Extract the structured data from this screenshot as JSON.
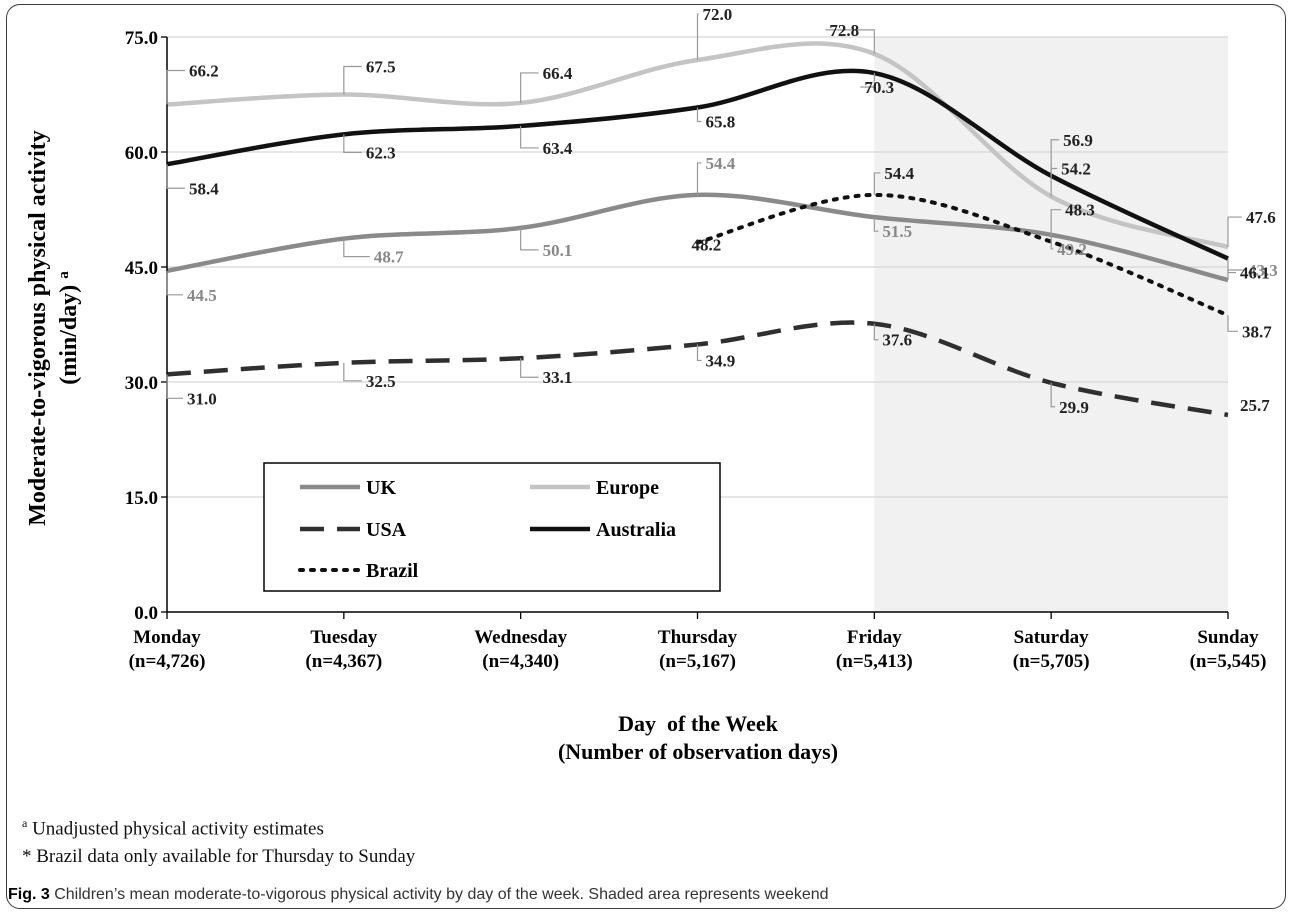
{
  "chart_data": {
    "type": "line",
    "ylabel_line1": "Moderate-to-vigorous physical activity",
    "ylabel_line2": "(min/day)",
    "ylabel_superscript": "a",
    "xlabel_line1": "Day  of the Week",
    "xlabel_line2": "(Number of observation days)",
    "ylim": [
      0,
      75
    ],
    "yticks": [
      "0.0",
      "15.0",
      "30.0",
      "45.0",
      "60.0",
      "75.0"
    ],
    "categories": [
      "Monday",
      "Tuesday",
      "Wednesday",
      "Thursday",
      "Friday",
      "Saturday",
      "Sunday"
    ],
    "category_counts": [
      "(n=4,726)",
      "(n=4,367)",
      "(n=4,340)",
      "(n=5,167)",
      "(n=5,413)",
      "(n=5,705)",
      "(n=5,545)"
    ],
    "shaded_region": "Friday to Sunday (weekend)",
    "grid": "horizontal",
    "legend_position": "lower-left",
    "series": [
      {
        "name": "UK",
        "color": "#8a8a8a",
        "style": "solid",
        "values": [
          44.5,
          48.7,
          50.1,
          54.4,
          51.5,
          49.2,
          43.3
        ],
        "labels": [
          "44.5",
          "48.7",
          "50.1",
          "54.4",
          "51.5",
          "49.2",
          "43.3"
        ]
      },
      {
        "name": "Europe",
        "color": "#c4c4c4",
        "style": "solid",
        "values": [
          66.2,
          67.5,
          66.4,
          72.0,
          72.8,
          54.2,
          47.6
        ],
        "labels": [
          "66.2",
          "67.5",
          "66.4",
          "72.0",
          "72.8",
          "54.2",
          "47.6"
        ]
      },
      {
        "name": "USA",
        "color": "#2f2f2f",
        "style": "dashed",
        "values": [
          31.0,
          32.5,
          33.1,
          34.9,
          37.6,
          29.9,
          25.7
        ],
        "labels": [
          "31.0",
          "32.5",
          "33.1",
          "34.9",
          "37.6",
          "29.9",
          "25.7"
        ]
      },
      {
        "name": "Australia",
        "color": "#111111",
        "style": "solid",
        "values": [
          58.4,
          62.3,
          63.4,
          65.8,
          70.3,
          56.9,
          46.1
        ],
        "labels": [
          "58.4",
          "62.3",
          "63.4",
          "65.8",
          "70.3",
          "56.9",
          "46.1"
        ]
      },
      {
        "name": "Brazil",
        "color": "#111111",
        "style": "dotted",
        "values": [
          null,
          null,
          null,
          48.2,
          54.4,
          48.3,
          38.7
        ],
        "labels": [
          null,
          null,
          null,
          "48.2",
          "54.4",
          "48.3",
          "38.7"
        ]
      }
    ]
  },
  "footnotes": {
    "a_marker": "a",
    "a_text": " Unadjusted physical activity estimates",
    "star_text": "* Brazil data only available for Thursday to Sunday"
  },
  "caption": {
    "label": "Fig. 3",
    "text": " Children’s mean moderate-to-vigorous physical activity by day of the week. Shaded area represents weekend"
  }
}
